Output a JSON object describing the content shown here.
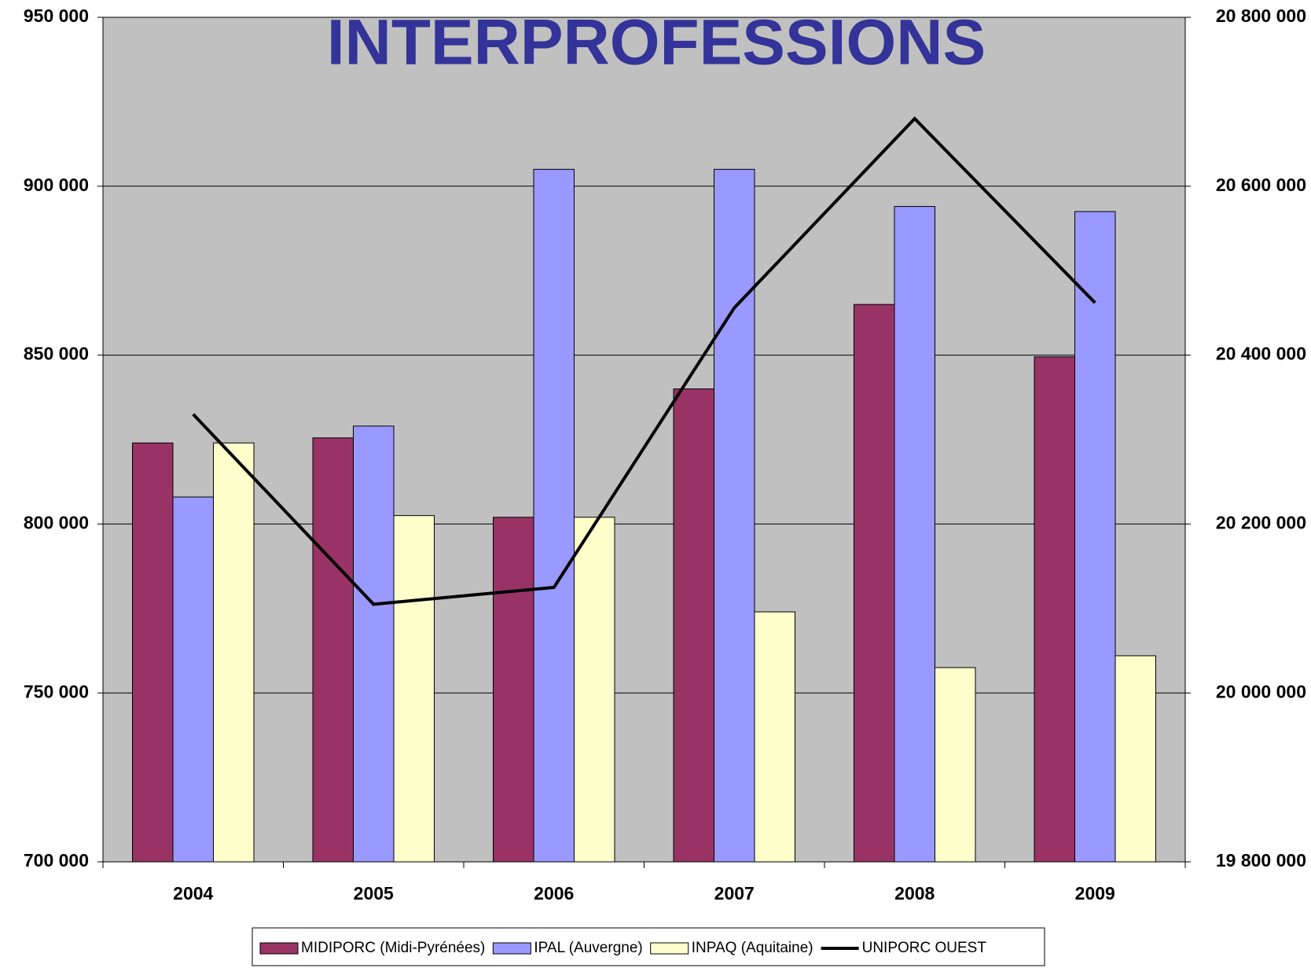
{
  "chart_data": {
    "type": "bar",
    "title": "INTERPROFESSIONS",
    "categories": [
      "2004",
      "2005",
      "2006",
      "2007",
      "2008",
      "2009"
    ],
    "series": [
      {
        "name": "MIDIPORC (Midi-Pyrénées)",
        "color": "#993366",
        "values": [
          824000,
          825500,
          802000,
          840000,
          865000,
          849500
        ]
      },
      {
        "name": "IPAL (Auvergne)",
        "color": "#9999ff",
        "values": [
          808000,
          829000,
          905000,
          905000,
          894000,
          892500
        ]
      },
      {
        "name": "INPAQ (Aquitaine)",
        "color": "#ffffcc",
        "values": [
          824000,
          802500,
          802000,
          774000,
          757500,
          761000
        ]
      },
      {
        "name": "UNIPORC OUEST",
        "color": "#000000",
        "type": "line",
        "axis": "y2",
        "values": [
          20330000,
          20105000,
          20125000,
          20456000,
          20680000,
          20462000
        ]
      }
    ],
    "ylim": [
      700000,
      950000
    ],
    "yticks": [
      {
        "value": 700000,
        "label": "700 000"
      },
      {
        "value": 750000,
        "label": "750 000"
      },
      {
        "value": 800000,
        "label": "800 000"
      },
      {
        "value": 850000,
        "label": "850 000"
      },
      {
        "value": 900000,
        "label": "900 000"
      },
      {
        "value": 950000,
        "label": "950 000"
      }
    ],
    "y2lim": [
      19800000,
      20800000
    ],
    "y2ticks": [
      {
        "value": 19800000,
        "label": "19 800 000"
      },
      {
        "value": 20000000,
        "label": "20 000 000"
      },
      {
        "value": 20200000,
        "label": "20 200 000"
      },
      {
        "value": 20400000,
        "label": "20 400 000"
      },
      {
        "value": 20600000,
        "label": "20 600 000"
      },
      {
        "value": 20800000,
        "label": "20 800 000"
      }
    ],
    "grid": true,
    "legend": "bottom",
    "background": "#c0c0c0"
  }
}
